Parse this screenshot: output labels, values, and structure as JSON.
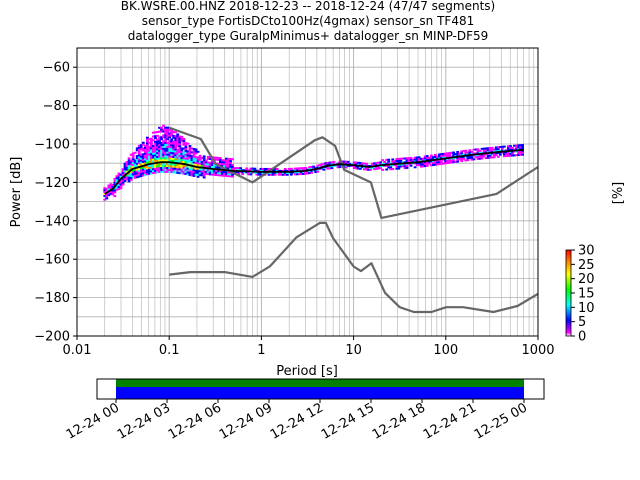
{
  "title_lines": [
    "BK.WSRE.00.HNZ   2018-12-23 -- 2018-12-24  (47/47 segments)",
    "sensor_type FortisDCto100Hz(4gmax) sensor_sn TF481",
    "datalogger_type GuralpMinimus+ datalogger_sn MINP-DF59"
  ],
  "colorbar": {
    "label": "[%]",
    "ticks": [
      "0",
      "5",
      "10",
      "15",
      "20",
      "25",
      "30"
    ],
    "range": [
      0,
      30
    ]
  },
  "chart_data": [
    {
      "type": "line",
      "title": "BK.WSRE.00.HNZ   2018-12-23 -- 2018-12-24  (47/47 segments)",
      "subtitle": "sensor_type FortisDCto100Hz(4gmax) sensor_sn TF481 / datalogger_type GuralpMinimus+ datalogger_sn MINP-DF59",
      "xlabel": "Period [s]",
      "ylabel": "Power [dB]",
      "xscale": "log",
      "xlim": [
        0.01,
        1000
      ],
      "ylim": [
        -200,
        -50
      ],
      "xticks": [
        "0.01",
        "0.1",
        "1",
        "10",
        "100",
        "1000"
      ],
      "yticks": [
        "-200",
        "-180",
        "-160",
        "-140",
        "-120",
        "-100",
        "-80",
        "-60"
      ],
      "grid": true,
      "series": [
        {
          "role": "new-high-noise-model",
          "color": "#666666",
          "x": [
            0.1,
            0.22,
            0.32,
            0.8,
            3.8,
            4.6,
            6.3,
            7.9,
            15.4,
            20,
            354.8,
            1000
          ],
          "y": [
            -91.5,
            -97.4,
            -110.5,
            -120,
            -98,
            -96.5,
            -101,
            -113.5,
            -120,
            -138.5,
            -126,
            -112
          ]
        },
        {
          "role": "new-low-noise-model",
          "color": "#666666",
          "x": [
            0.1,
            0.17,
            0.4,
            0.8,
            1.24,
            2.4,
            4.3,
            5.0,
            6.0,
            10.0,
            12.0,
            15.6,
            21.9,
            31.6,
            45,
            70,
            101,
            154,
            328,
            600,
            1000
          ],
          "y": [
            -168,
            -166.7,
            -166.7,
            -169.2,
            -163.7,
            -148.6,
            -141.1,
            -141.1,
            -149,
            -163.8,
            -166.2,
            -162.1,
            -177.5,
            -185,
            -187.5,
            -187.5,
            -185,
            -185,
            -187.5,
            -184.4,
            -178
          ]
        },
        {
          "role": "mode",
          "color": "#000000",
          "x": [
            0.02,
            0.025,
            0.03,
            0.04,
            0.06,
            0.08,
            0.1,
            0.15,
            0.2,
            0.3,
            0.5,
            1,
            2,
            3,
            4,
            5,
            7,
            10,
            15,
            20,
            50,
            100,
            200,
            400,
            700
          ],
          "y": [
            -126,
            -123,
            -118,
            -113,
            -110.5,
            -109.5,
            -109.5,
            -110.5,
            -112,
            -113,
            -114,
            -114.5,
            -114.5,
            -114,
            -113,
            -111.5,
            -110.5,
            -111,
            -112,
            -111,
            -109.5,
            -107.5,
            -105.5,
            -104,
            -103
          ]
        }
      ],
      "density": {
        "description_colors": [
          "#ff00ff",
          "#0000ff",
          "#00ffff",
          "#00ff00",
          "#ffff00",
          "#ff8800",
          "#ff0000"
        ],
        "colormap": "pqlx"
      }
    },
    {
      "type": "bar",
      "role": "data-coverage",
      "xlim": [
        "2018-12-24 00:00",
        "2018-12-25 00:00"
      ],
      "xticks": [
        "12-24 00",
        "12-24 03",
        "12-24 06",
        "12-24 09",
        "12-24 12",
        "12-24 15",
        "12-24 18",
        "12-24 21",
        "12-25 00"
      ],
      "series": [
        {
          "role": "coverage",
          "color": "#008000",
          "start": "2018-12-24 00:00",
          "end": "2018-12-25 00:00"
        },
        {
          "role": "used-data",
          "color": "#0000ff",
          "start": "2018-12-24 00:00",
          "end": "2018-12-25 00:00"
        }
      ]
    }
  ]
}
